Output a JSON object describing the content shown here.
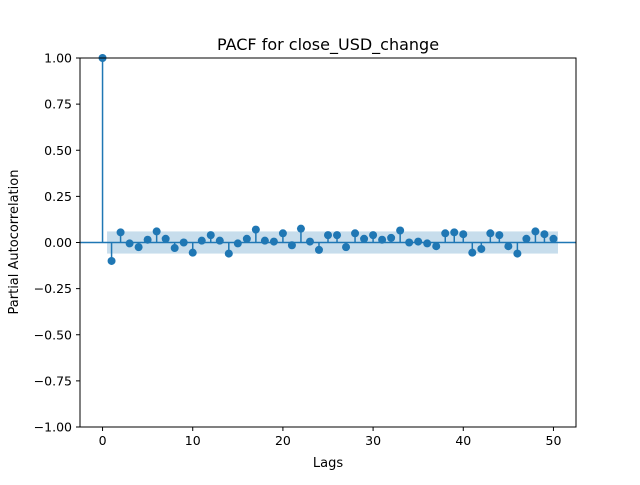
{
  "chart_data": {
    "type": "scatter",
    "title": "PACF for close_USD_change",
    "xlabel": "Lags",
    "ylabel": "Partial Autocorrelation",
    "xlim": [
      -2.5,
      52.5
    ],
    "ylim": [
      -1.0,
      1.0
    ],
    "x_ticks": [
      0,
      10,
      20,
      30,
      40,
      50
    ],
    "y_ticks": [
      1.0,
      0.75,
      0.5,
      0.25,
      0.0,
      -0.25,
      -0.5,
      -0.75,
      -1.0
    ],
    "x_tick_labels": [
      "0",
      "10",
      "20",
      "30",
      "40",
      "50"
    ],
    "y_tick_labels": [
      "1.00",
      "0.75",
      "0.50",
      "0.25",
      "0.00",
      "−0.25",
      "−0.50",
      "−0.75",
      "−1.00"
    ],
    "grid": false,
    "legend": false,
    "confidence_band": {
      "lower": -0.06,
      "upper": 0.06,
      "from_lag": 0.5,
      "to_lag": 50.5
    },
    "series": [
      {
        "lags": [
          0,
          1,
          2,
          3,
          4,
          5,
          6,
          7,
          8,
          9,
          10,
          11,
          12,
          13,
          14,
          15,
          16,
          17,
          18,
          19,
          20,
          21,
          22,
          23,
          24,
          25,
          26,
          27,
          28,
          29,
          30,
          31,
          32,
          33,
          34,
          35,
          36,
          37,
          38,
          39,
          40,
          41,
          42,
          43,
          44,
          45,
          46,
          47,
          48,
          49,
          50
        ],
        "values": [
          1.0,
          -0.1,
          0.055,
          -0.005,
          -0.025,
          0.015,
          0.06,
          0.02,
          -0.03,
          0.0,
          -0.055,
          0.01,
          0.04,
          0.01,
          -0.06,
          -0.005,
          0.02,
          0.07,
          0.01,
          0.005,
          0.05,
          -0.015,
          0.075,
          0.005,
          -0.04,
          0.04,
          0.04,
          -0.025,
          0.05,
          0.02,
          0.04,
          0.015,
          0.025,
          0.065,
          0.0,
          0.005,
          -0.005,
          -0.02,
          0.05,
          0.055,
          0.045,
          -0.055,
          -0.035,
          0.05,
          0.04,
          -0.02,
          -0.06,
          0.02,
          0.06,
          0.045,
          0.02
        ]
      }
    ],
    "colors": {
      "series": "#1f77b4",
      "band": "#1f77b4"
    }
  }
}
